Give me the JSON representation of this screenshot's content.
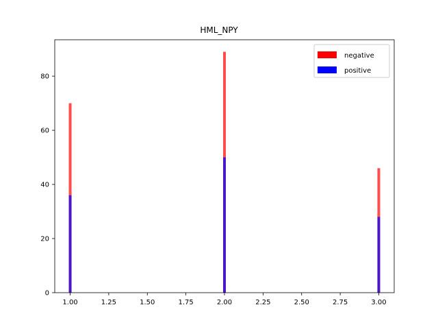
{
  "chart_data": {
    "type": "bar",
    "title": "HML_NPY",
    "xlabel": "",
    "ylabel": "",
    "x": [
      1.0,
      2.0,
      3.0
    ],
    "series": [
      {
        "name": "negative",
        "values": [
          70,
          89,
          46
        ],
        "color": "#ff0000",
        "opacity": 0.7
      },
      {
        "name": "positive",
        "values": [
          36,
          50,
          28
        ],
        "color": "#0000ff",
        "opacity": 0.7
      }
    ],
    "xlim": [
      0.9,
      3.1
    ],
    "ylim": [
      0,
      93.45
    ],
    "xticks": [
      1.0,
      1.25,
      1.5,
      1.75,
      2.0,
      2.25,
      2.5,
      2.75,
      3.0
    ],
    "xtick_labels": [
      "1.00",
      "1.25",
      "1.50",
      "1.75",
      "2.00",
      "2.25",
      "2.50",
      "2.75",
      "3.00"
    ],
    "yticks": [
      0,
      20,
      40,
      60,
      80
    ],
    "ytick_labels": [
      "0",
      "20",
      "40",
      "60",
      "80"
    ],
    "legend": {
      "position": "top-right",
      "entries": [
        "negative",
        "positive"
      ]
    },
    "grid": false
  }
}
